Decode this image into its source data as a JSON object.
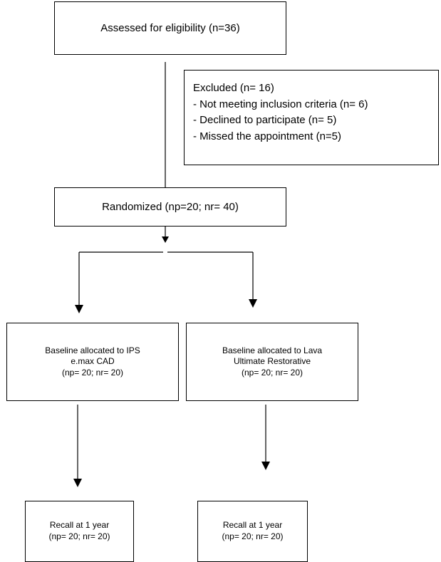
{
  "flowchart": {
    "assessed": "Assessed for eligibility (n=36)",
    "excluded": {
      "title": "Excluded (n= 16)",
      "items": [
        "- Not meeting inclusion criteria (n= 6)",
        "- Declined to participate (n= 5)",
        "- Missed the appointment (n=5)"
      ]
    },
    "randomized": "Randomized (np=20; nr= 40)",
    "arms": [
      {
        "baseline": [
          "Baseline allocated to IPS",
          "e.max CAD",
          "(np= 20; nr= 20)"
        ],
        "recall": [
          "Recall at 1 year",
          "(np= 20; nr= 20)"
        ]
      },
      {
        "baseline": [
          "Baseline allocated to Lava",
          "Ultimate Restorative",
          "(np= 20; nr= 20)"
        ],
        "recall": [
          "Recall at 1 year",
          "(np= 20; nr= 20)"
        ]
      }
    ]
  }
}
